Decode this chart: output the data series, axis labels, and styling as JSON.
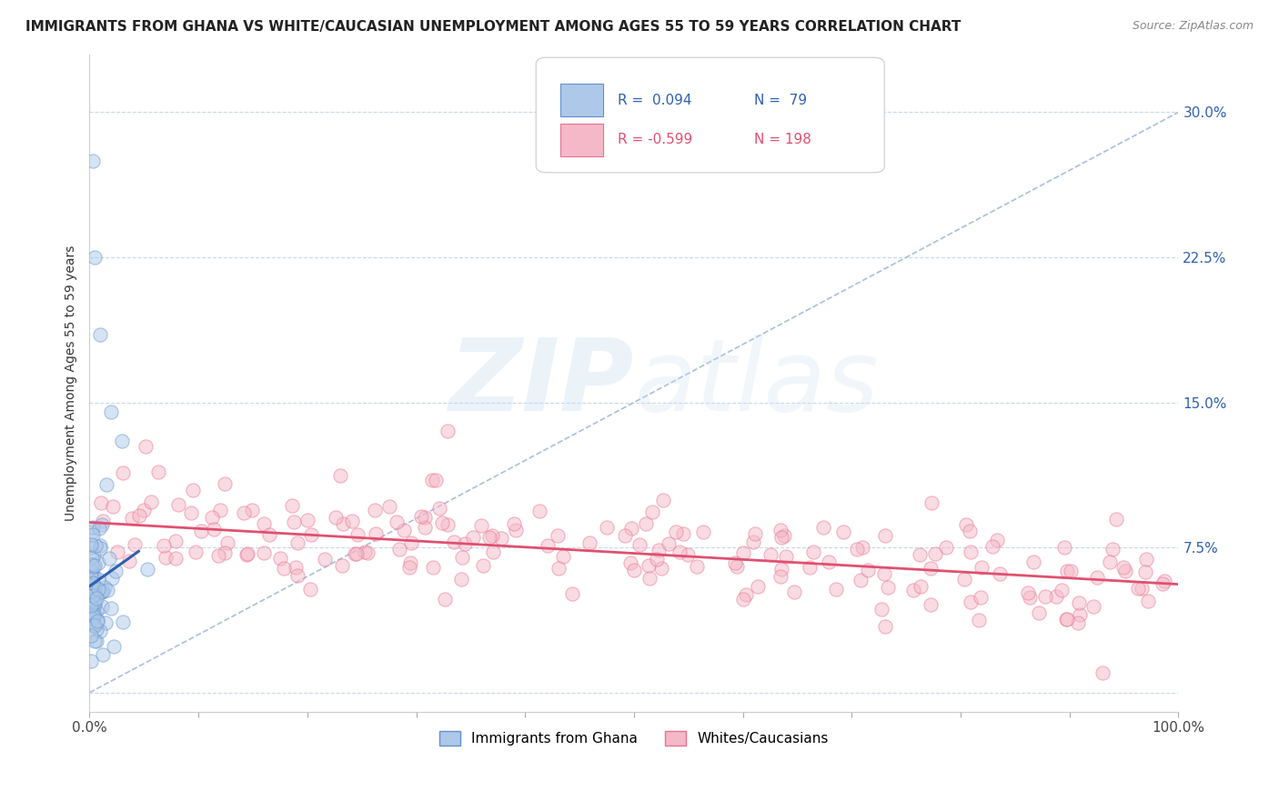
{
  "title": "IMMIGRANTS FROM GHANA VS WHITE/CAUCASIAN UNEMPLOYMENT AMONG AGES 55 TO 59 YEARS CORRELATION CHART",
  "source": "Source: ZipAtlas.com",
  "ylabel": "Unemployment Among Ages 55 to 59 years",
  "xlim": [
    0,
    100
  ],
  "ylim": [
    -1,
    33
  ],
  "yticks": [
    0,
    7.5,
    15.0,
    22.5,
    30.0
  ],
  "ytick_labels_right": [
    "",
    "7.5%",
    "15.0%",
    "22.5%",
    "30.0%"
  ],
  "legend_label1": "Immigrants from Ghana",
  "legend_label2": "Whites/Caucasians",
  "color_blue_fill": "#adc8e8",
  "color_pink_fill": "#f5b8c8",
  "color_blue_edge": "#6090cc",
  "color_pink_edge": "#e87090",
  "color_blue_line": "#3060b0",
  "color_pink_line": "#e05070",
  "color_diag_line": "#a0b8d8",
  "title_fontsize": 11,
  "axis_label_fontsize": 10,
  "tick_fontsize": 11,
  "background_color": "#ffffff",
  "scatter_alpha": 0.5,
  "scatter_size": 120,
  "R1": 0.094,
  "N1": 79,
  "R2": -0.599,
  "N2": 198,
  "grid_color": "#c8d8e8",
  "grid_linestyle": "--",
  "grid_linewidth": 0.8,
  "pink_y_intercept": 8.8,
  "pink_slope": -0.032,
  "pink_noise": 1.5,
  "blue_y_intercept": 5.5,
  "blue_slope": 0.4,
  "blue_noise": 1.8,
  "watermark_color": "#c8ddf0"
}
